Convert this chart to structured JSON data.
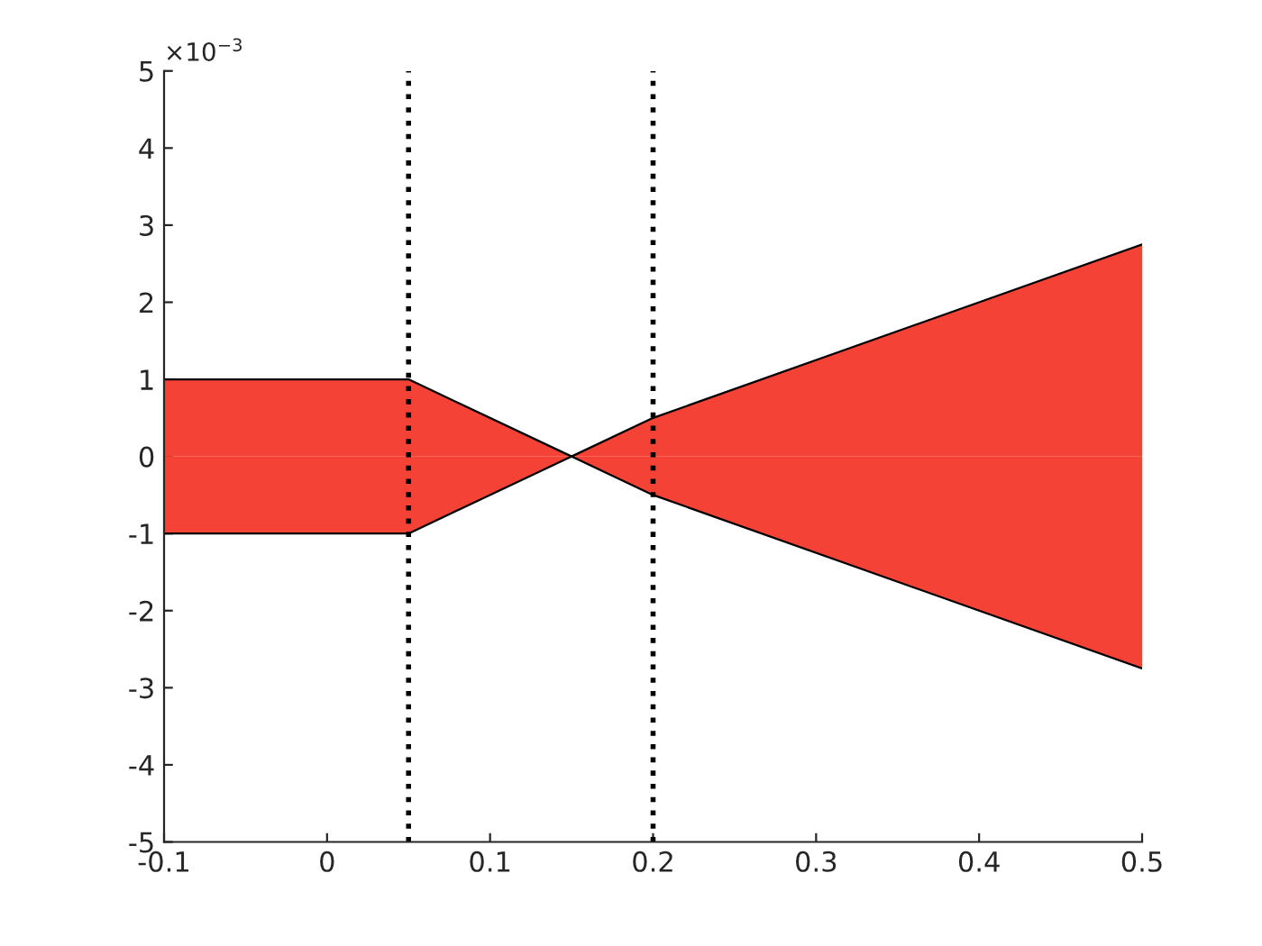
{
  "chart_data": {
    "type": "area",
    "x": [
      -0.1,
      0.05,
      0.15,
      0.2,
      0.5
    ],
    "series": [
      {
        "color": "#f44336",
        "values": [
          1,
          1,
          0,
          0.5,
          2.75
        ]
      },
      {
        "color": "#f44336",
        "values": [
          -1,
          -1,
          0,
          -0.5,
          -2.75
        ]
      }
    ],
    "xlim": [
      -0.1,
      0.5
    ],
    "xticks": [
      -0.1,
      0,
      0.1,
      0.2,
      0.3,
      0.4,
      0.5
    ],
    "ylim": [
      -5,
      5
    ],
    "yticks": [
      -5,
      -4,
      -3,
      -2,
      -1,
      0,
      1,
      2,
      3,
      4,
      5
    ],
    "annotations": [
      "×10$^{−3}$"
    ],
    "ref_lines": [
      {
        "axis": "x",
        "value": 0.05,
        "color": "#000000",
        "line_style": "dotted"
      },
      {
        "axis": "x",
        "value": 0.2,
        "color": "#000000",
        "line_style": "dotted"
      }
    ],
    "grid": false,
    "legend": false
  }
}
